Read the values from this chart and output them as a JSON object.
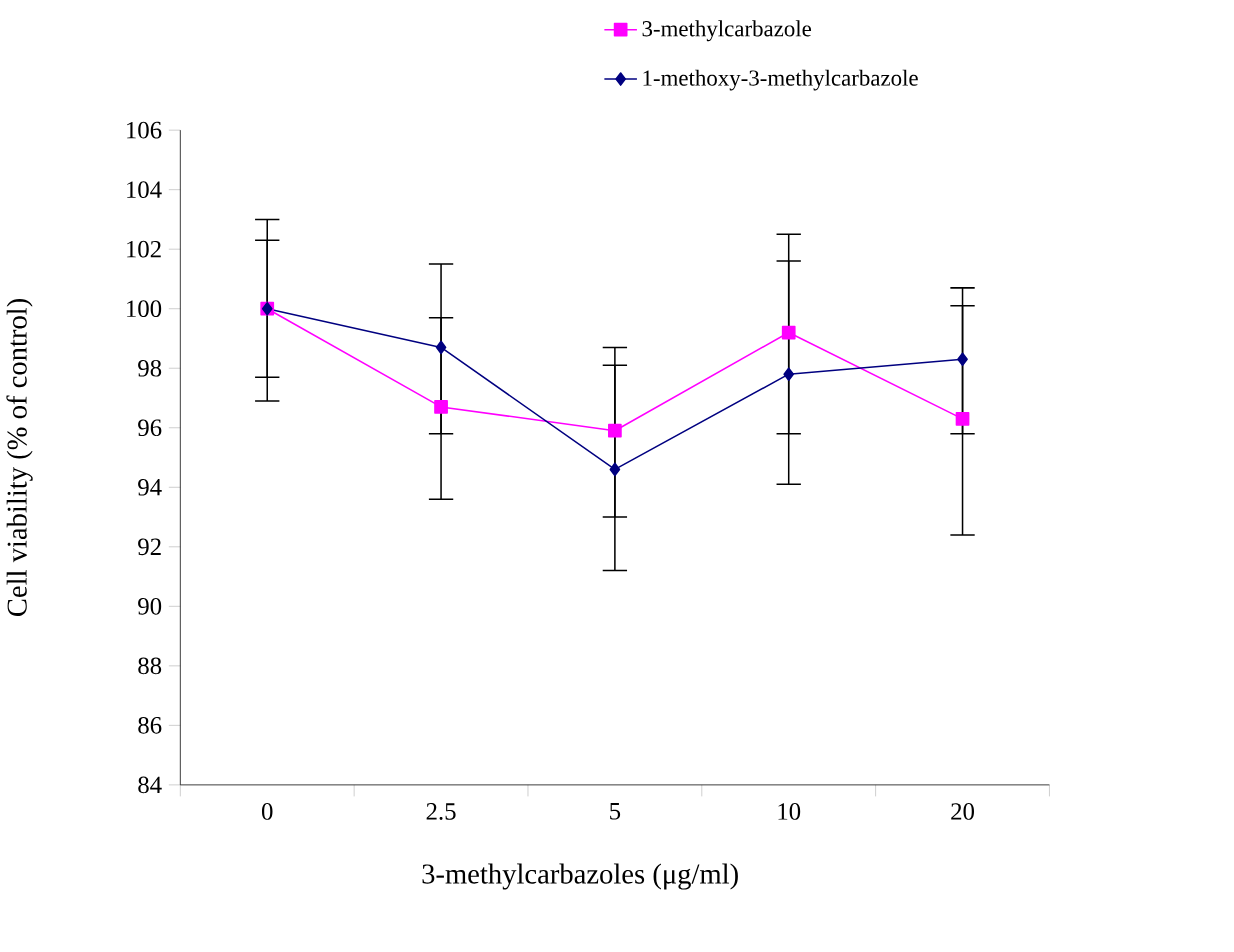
{
  "chart_data": {
    "type": "line",
    "xlabel": "3-methylcarbazoles (μg/ml)",
    "ylabel": "Cell viability (% of control)",
    "categories": [
      "0",
      "2.5",
      "5",
      "10",
      "20"
    ],
    "series": [
      {
        "name": "3-methylcarbazole",
        "color": "#ff00ff",
        "marker": "square",
        "values": [
          100,
          96.7,
          95.9,
          99.2,
          96.3
        ],
        "errors": [
          [
            97.7,
            102.3
          ],
          [
            93.6,
            99.7
          ],
          [
            93.0,
            98.7
          ],
          [
            95.8,
            102.5
          ],
          [
            92.4,
            100.1
          ]
        ]
      },
      {
        "name": "1-methoxy-3-methylcarbazole",
        "color": "#000080",
        "marker": "diamond",
        "values": [
          100,
          98.7,
          94.6,
          97.8,
          98.3
        ],
        "errors": [
          [
            96.9,
            103.0
          ],
          [
            95.8,
            101.5
          ],
          [
            91.2,
            98.1
          ],
          [
            94.1,
            101.6
          ],
          [
            95.8,
            100.7
          ]
        ]
      }
    ],
    "ylim": [
      84,
      106
    ],
    "yticks": [
      84,
      86,
      88,
      90,
      92,
      94,
      96,
      98,
      100,
      102,
      104,
      106
    ],
    "grid": false,
    "legend": "top right",
    "line_style": "solid"
  }
}
